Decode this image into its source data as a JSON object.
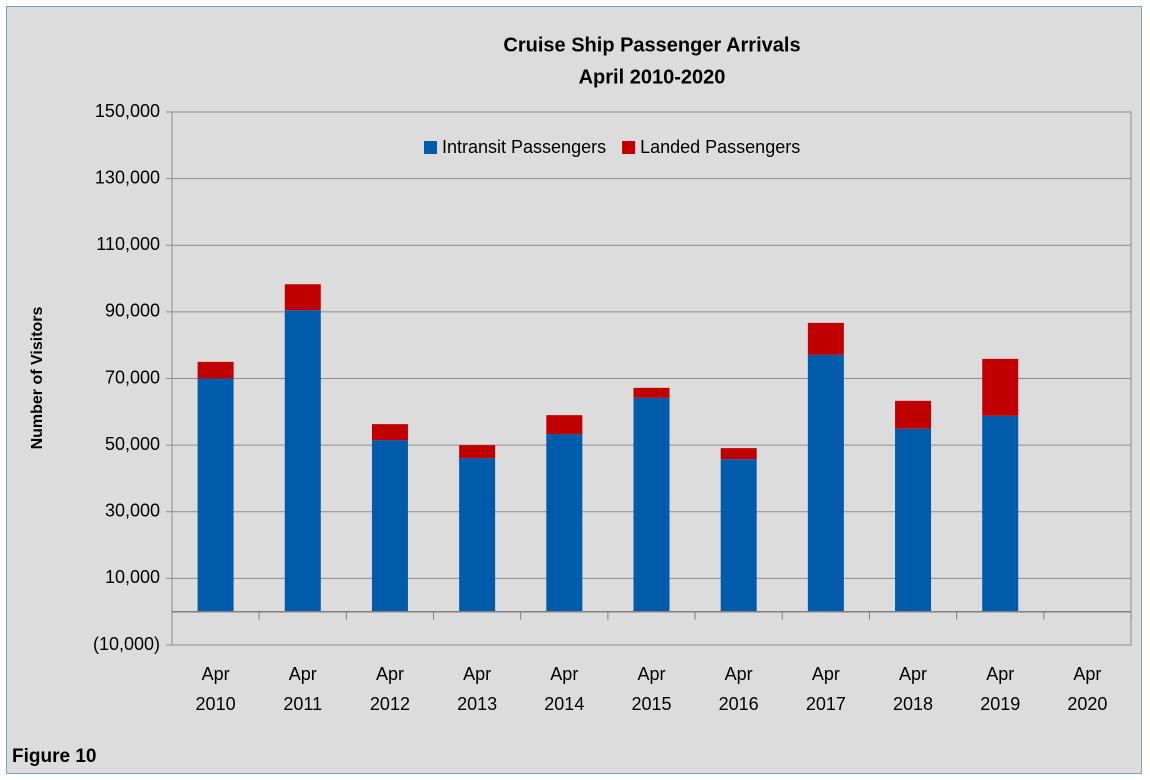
{
  "chart_data": {
    "type": "stacked_bar",
    "title": "Cruise Ship Passenger Arrivals",
    "subtitle": "April 2010-2020",
    "y_label": "Number of Visitors",
    "categories": [
      "Apr 2010",
      "Apr 2011",
      "Apr 2012",
      "Apr 2013",
      "Apr 2014",
      "Apr 2015",
      "Apr 2016",
      "Apr 2017",
      "Apr 2018",
      "Apr 2019",
      "Apr 2020"
    ],
    "series": [
      {
        "name": "Intransit Passengers",
        "color": "#005bab",
        "values": [
          70000,
          90500,
          51500,
          46100,
          53300,
          64200,
          45800,
          77100,
          54900,
          58800,
          0
        ]
      },
      {
        "name": "Landed Passengers",
        "color": "#c00000",
        "values": [
          5000,
          7800,
          4800,
          3900,
          5700,
          3000,
          3300,
          9600,
          8400,
          17100,
          0
        ]
      }
    ],
    "ylim": [
      -10000,
      150000
    ],
    "yticks": [
      {
        "value": -10000,
        "label": "(10,000)"
      },
      {
        "value": 10000,
        "label": "10,000"
      },
      {
        "value": 30000,
        "label": "30,000"
      },
      {
        "value": 50000,
        "label": "50,000"
      },
      {
        "value": 70000,
        "label": "70,000"
      },
      {
        "value": 90000,
        "label": "90,000"
      },
      {
        "value": 110000,
        "label": "110,000"
      },
      {
        "value": 130000,
        "label": "130,000"
      },
      {
        "value": 150000,
        "label": "150,000"
      }
    ],
    "grid": true,
    "legend": "top"
  },
  "figure_label": "Figure 10"
}
